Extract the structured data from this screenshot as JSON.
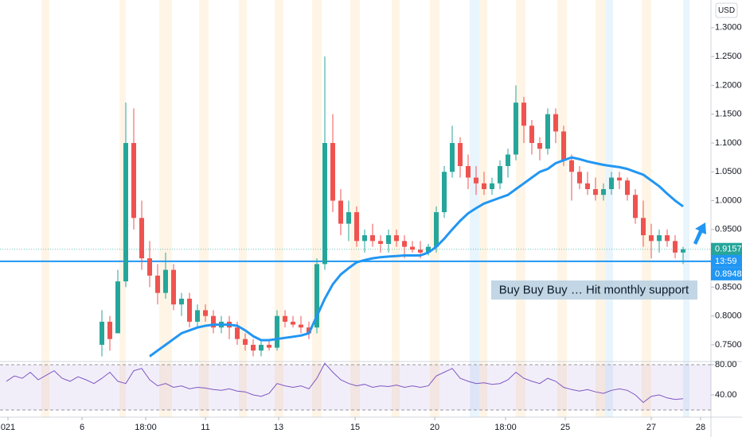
{
  "chart_data": {
    "type": "candlestick",
    "currency": "USD",
    "xlim": [
      -12.8,
      76.5
    ],
    "xticks": [
      {
        "value": -11.8,
        "label": "021"
      },
      {
        "value": -2.5,
        "label": "6"
      },
      {
        "value": 5.5,
        "label": "18:00"
      },
      {
        "value": 13,
        "label": "11"
      },
      {
        "value": 22.2,
        "label": "13"
      },
      {
        "value": 31.8,
        "label": "15"
      },
      {
        "value": 41.8,
        "label": "20"
      },
      {
        "value": 50.7,
        "label": "18:00"
      },
      {
        "value": 58.2,
        "label": "25"
      },
      {
        "value": 69,
        "label": "27"
      },
      {
        "value": 75.2,
        "label": "28"
      }
    ],
    "ylim": [
      0.721,
      1.348
    ],
    "yticks": [
      {
        "value": 1.3,
        "label": "1.3000"
      },
      {
        "value": 1.25,
        "label": "1.2500"
      },
      {
        "value": 1.2,
        "label": "1.2000"
      },
      {
        "value": 1.15,
        "label": "1.1500"
      },
      {
        "value": 1.1,
        "label": "1.1000"
      },
      {
        "value": 1.05,
        "label": "1.0500"
      },
      {
        "value": 1.0,
        "label": "1.0000"
      },
      {
        "value": 0.95,
        "label": "0.9500"
      },
      {
        "value": 0.85,
        "label": "0.8500"
      },
      {
        "value": 0.8,
        "label": "0.8000"
      },
      {
        "value": 0.75,
        "label": "0.7500"
      }
    ],
    "up_color": "#26a69a",
    "down_color": "#ef5350",
    "open": [
      0.75,
      0.79,
      0.77,
      0.86,
      1.1,
      0.97,
      0.9,
      0.87,
      0.84,
      0.88,
      0.82,
      0.83,
      0.79,
      0.81,
      0.8,
      0.78,
      0.79,
      0.78,
      0.76,
      0.75,
      0.74,
      0.75,
      0.745,
      0.8,
      0.79,
      0.785,
      0.78,
      0.78,
      0.89,
      1.1,
      1.0,
      0.96,
      0.98,
      0.93,
      0.94,
      0.93,
      0.925,
      0.94,
      0.93,
      0.92,
      0.915,
      0.91,
      0.92,
      0.98,
      1.05,
      1.1,
      1.06,
      1.04,
      1.03,
      1.02,
      1.03,
      1.06,
      1.08,
      1.17,
      1.13,
      1.1,
      1.09,
      1.15,
      1.12,
      1.07,
      1.05,
      1.03,
      1.02,
      1.01,
      1.02,
      1.04,
      1.035,
      1.01,
      0.97,
      0.94,
      0.93,
      0.94,
      0.93,
      0.91
    ],
    "high": [
      0.81,
      0.8,
      0.88,
      1.17,
      1.16,
      1.0,
      0.93,
      0.89,
      0.91,
      0.89,
      0.84,
      0.84,
      0.82,
      0.82,
      0.81,
      0.8,
      0.8,
      0.79,
      0.77,
      0.76,
      0.76,
      0.76,
      0.81,
      0.81,
      0.8,
      0.8,
      0.79,
      0.9,
      1.25,
      1.15,
      1.02,
      1.0,
      0.99,
      0.95,
      0.96,
      0.94,
      0.95,
      0.95,
      0.94,
      0.93,
      0.93,
      0.925,
      0.99,
      1.06,
      1.13,
      1.11,
      1.08,
      1.06,
      1.05,
      1.04,
      1.07,
      1.09,
      1.2,
      1.18,
      1.14,
      1.11,
      1.16,
      1.16,
      1.13,
      1.08,
      1.06,
      1.05,
      1.04,
      1.03,
      1.05,
      1.05,
      1.04,
      1.02,
      1.0,
      0.96,
      0.95,
      0.95,
      0.94,
      0.92
    ],
    "low": [
      0.73,
      0.74,
      0.77,
      0.85,
      0.95,
      0.88,
      0.85,
      0.82,
      0.83,
      0.81,
      0.8,
      0.78,
      0.78,
      0.79,
      0.77,
      0.77,
      0.76,
      0.75,
      0.74,
      0.73,
      0.73,
      0.74,
      0.74,
      0.78,
      0.78,
      0.77,
      0.76,
      0.77,
      0.88,
      0.98,
      0.94,
      0.93,
      0.92,
      0.91,
      0.92,
      0.91,
      0.91,
      0.92,
      0.9,
      0.91,
      0.9,
      0.905,
      0.91,
      0.97,
      1.04,
      1.04,
      1.02,
      1.01,
      1.01,
      1.01,
      1.02,
      1.04,
      1.07,
      1.1,
      1.08,
      1.07,
      1.08,
      1.1,
      1.06,
      1.0,
      1.02,
      1.01,
      1.0,
      1.0,
      1.01,
      1.02,
      1.0,
      0.96,
      0.92,
      0.9,
      0.91,
      0.92,
      0.9,
      0.89
    ],
    "close": [
      0.79,
      0.76,
      0.86,
      1.1,
      0.97,
      0.9,
      0.87,
      0.84,
      0.88,
      0.82,
      0.83,
      0.79,
      0.81,
      0.8,
      0.78,
      0.79,
      0.78,
      0.76,
      0.75,
      0.74,
      0.75,
      0.745,
      0.8,
      0.79,
      0.785,
      0.78,
      0.77,
      0.89,
      1.1,
      1.0,
      0.96,
      0.98,
      0.93,
      0.94,
      0.93,
      0.925,
      0.94,
      0.93,
      0.92,
      0.915,
      0.91,
      0.92,
      0.98,
      1.05,
      1.1,
      1.06,
      1.04,
      1.03,
      1.02,
      1.03,
      1.06,
      1.08,
      1.17,
      1.13,
      1.1,
      1.09,
      1.15,
      1.12,
      1.07,
      1.05,
      1.03,
      1.02,
      1.01,
      1.02,
      1.04,
      1.035,
      1.01,
      0.97,
      0.94,
      0.93,
      0.94,
      0.93,
      0.91,
      0.9157
    ],
    "ma": {
      "color": "#2196f3",
      "values": [
        null,
        null,
        null,
        null,
        null,
        null,
        0.73,
        0.74,
        0.75,
        0.76,
        0.77,
        0.775,
        0.78,
        0.783,
        0.785,
        0.785,
        0.785,
        0.783,
        0.775,
        0.765,
        0.758,
        0.758,
        0.76,
        0.762,
        0.764,
        0.766,
        0.77,
        0.8,
        0.83,
        0.855,
        0.872,
        0.883,
        0.893,
        0.897,
        0.9,
        0.902,
        0.903,
        0.904,
        0.905,
        0.905,
        0.905,
        0.91,
        0.92,
        0.934,
        0.95,
        0.965,
        0.978,
        0.987,
        0.995,
        1.0,
        1.005,
        1.01,
        1.02,
        1.03,
        1.04,
        1.05,
        1.055,
        1.065,
        1.07,
        1.075,
        1.072,
        1.068,
        1.065,
        1.062,
        1.06,
        1.058,
        1.055,
        1.05,
        1.045,
        1.035,
        1.025,
        1.012,
        1.0,
        0.99
      ]
    },
    "support": {
      "value": 0.8948,
      "label": "0.8948",
      "color": "#2196f3"
    },
    "countdown": "13:59",
    "annotation": "Buy Buy Buy … Hit monthly support",
    "rsi": {
      "color": "#7e57c2",
      "ylim": [
        10.5,
        84.2
      ],
      "bands": [
        20,
        80
      ],
      "yticks": [
        {
          "value": 80,
          "label": "80.00"
        },
        {
          "value": 40,
          "label": "40.00"
        }
      ],
      "x": [
        -12,
        -11,
        -10,
        -9,
        -8,
        -7,
        -6,
        -5,
        -4,
        -3,
        -2,
        -1,
        0,
        1,
        2,
        3,
        4,
        5,
        6,
        7,
        8,
        9,
        10,
        11,
        12,
        13,
        14,
        15,
        16,
        17,
        18,
        19,
        20,
        21,
        22,
        23,
        24,
        25,
        26,
        27,
        28,
        29,
        30,
        31,
        32,
        33,
        34,
        35,
        36,
        37,
        38,
        39,
        40,
        41,
        42,
        43,
        44,
        45,
        46,
        47,
        48,
        49,
        50,
        51,
        52,
        53,
        54,
        55,
        56,
        57,
        58,
        59,
        60,
        61,
        62,
        63,
        64,
        65,
        66,
        67,
        68,
        69,
        70,
        71,
        72,
        73
      ],
      "values": [
        58,
        65,
        62,
        70,
        60,
        66,
        72,
        62,
        58,
        64,
        60,
        55,
        62,
        70,
        58,
        55,
        72,
        75,
        60,
        52,
        55,
        50,
        52,
        48,
        50,
        49,
        47,
        46,
        48,
        45,
        44,
        40,
        38,
        42,
        55,
        52,
        50,
        52,
        48,
        62,
        82,
        70,
        60,
        55,
        52,
        54,
        50,
        52,
        51,
        53,
        50,
        52,
        50,
        52,
        65,
        70,
        75,
        62,
        58,
        55,
        56,
        54,
        55,
        60,
        70,
        62,
        58,
        55,
        62,
        58,
        50,
        47,
        45,
        47,
        44,
        42,
        46,
        48,
        46,
        40,
        30,
        38,
        40,
        36,
        34,
        35
      ]
    }
  }
}
